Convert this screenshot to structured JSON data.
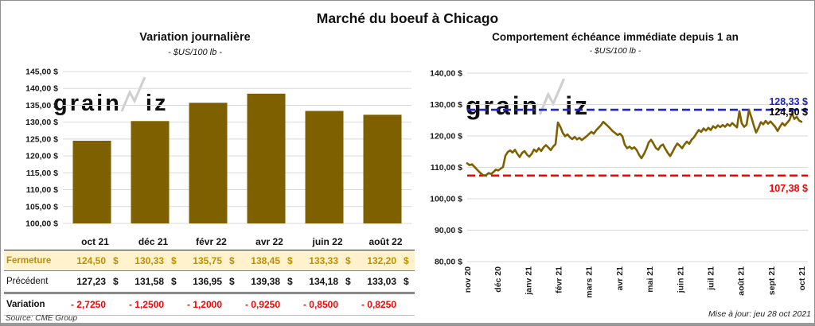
{
  "page": {
    "title": "Marché du boeuf à Chicago",
    "source": "Source: CME Group",
    "updated": "Mise à jour: jeu 28 oct 2021",
    "watermark": {
      "part1": "grain",
      "part2": "iz"
    }
  },
  "colors": {
    "series": "#7F6000",
    "grid": "#D9D9D9",
    "axis_text": "#1a1a1a",
    "high_line": "#2222CC",
    "low_line": "#FF0000",
    "last_label": "#000000",
    "fermeture_bg": "#FFF2CC",
    "fermeture_text": "#BF8F00",
    "variation_text": "#FF0000",
    "watermark": "#CFCFCF",
    "frame": "#9B9B9B"
  },
  "chart_data": [
    {
      "type": "bar",
      "title": "Variation journalière",
      "subtitle": "- $US/100 lb -",
      "categories": [
        "oct 21",
        "déc 21",
        "févr 22",
        "avr 22",
        "juin 22",
        "août 22"
      ],
      "values": [
        124.5,
        130.33,
        135.75,
        138.45,
        133.33,
        132.2
      ],
      "ylabel": "$US/100 lb",
      "ylim": [
        100,
        145
      ],
      "ytick_step": 5,
      "grid": true
    },
    {
      "type": "line",
      "title": "Comportement échéance immédiate depuis 1 an",
      "subtitle": "- $US/100 lb -",
      "x_labels": [
        "nov 20",
        "déc 20",
        "janv 21",
        "févr 21",
        "mars 21",
        "avr 21",
        "mai 21",
        "juin 21",
        "juil 21",
        "août 21",
        "sept 21",
        "oct 21"
      ],
      "values": [
        111.3,
        110.7,
        111.0,
        110.2,
        109.4,
        108.6,
        107.9,
        107.4,
        107.6,
        108.2,
        107.9,
        108.5,
        109.3,
        109.0,
        109.6,
        110.1,
        113.7,
        114.9,
        115.4,
        114.7,
        115.6,
        114.3,
        113.3,
        114.6,
        115.2,
        114.1,
        113.4,
        114.3,
        115.7,
        115.0,
        116.1,
        115.2,
        116.4,
        117.1,
        116.3,
        115.5,
        116.6,
        117.4,
        124.3,
        122.9,
        121.0,
        119.9,
        120.5,
        119.6,
        119.0,
        119.7,
        118.9,
        119.4,
        118.7,
        119.3,
        119.9,
        120.6,
        121.3,
        120.7,
        121.8,
        122.6,
        123.4,
        124.5,
        123.8,
        123.1,
        122.3,
        121.5,
        120.9,
        120.3,
        120.7,
        119.9,
        117.2,
        116.1,
        116.6,
        115.9,
        116.4,
        115.5,
        114.0,
        112.9,
        114.2,
        115.8,
        117.9,
        118.8,
        117.6,
        116.2,
        115.6,
        116.8,
        117.3,
        115.9,
        114.6,
        113.6,
        114.9,
        116.4,
        117.6,
        116.9,
        116.1,
        117.3,
        118.2,
        117.5,
        118.8,
        119.6,
        120.8,
        121.9,
        121.3,
        122.4,
        121.7,
        122.6,
        121.9,
        123.1,
        122.5,
        123.4,
        122.8,
        123.5,
        122.9,
        123.8,
        123.2,
        124.1,
        123.4,
        122.7,
        127.9,
        124.0,
        122.9,
        123.6,
        128.3,
        126.0,
        123.4,
        121.1,
        122.6,
        124.4,
        123.7,
        124.8,
        123.9,
        124.6,
        123.8,
        122.9,
        121.6,
        123.0,
        124.1,
        123.3,
        124.2,
        125.1,
        127.3,
        125.4,
        126.1,
        124.9,
        124.5
      ],
      "ylabel": "$US/100 lb",
      "ylim": [
        80,
        140
      ],
      "ytick_step": 10,
      "grid": true,
      "annotations": [
        {
          "id": "high",
          "label": "128,33 $",
          "value": 128.33
        },
        {
          "id": "last",
          "label": "124,50 $",
          "value": 124.5
        },
        {
          "id": "low",
          "label": "107,38 $",
          "value": 107.38
        }
      ]
    }
  ],
  "table": {
    "header": [
      "",
      "oct 21",
      "déc 21",
      "févr 22",
      "avr 22",
      "juin 22",
      "août 22"
    ],
    "rows": [
      {
        "label": "Fermeture",
        "values": [
          "124,50",
          "130,33",
          "135,75",
          "138,45",
          "133,33",
          "132,20"
        ],
        "suffix": "$",
        "style": "fermeture"
      },
      {
        "label": "Précédent",
        "values": [
          "127,23",
          "131,58",
          "136,95",
          "139,38",
          "134,18",
          "133,03"
        ],
        "suffix": "$",
        "style": "precedent"
      },
      {
        "label": "Variation",
        "values": [
          "- 2,7250",
          "- 1,2500",
          "- 1,2000",
          "- 0,9250",
          "- 0,8500",
          "- 0,8250"
        ],
        "suffix": "",
        "style": "variation"
      }
    ]
  }
}
